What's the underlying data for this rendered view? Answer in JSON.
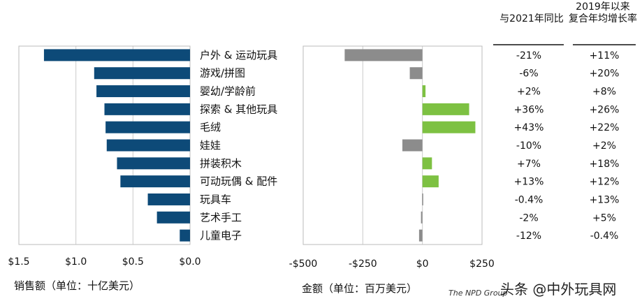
{
  "chart_data": [
    {
      "type": "bar",
      "orientation": "horizontal",
      "xlabel": "销售额（单位：十亿美元）",
      "categories": [
        "户外 & 运动玩具",
        "游戏/拼图",
        "婴幼/学龄前",
        "探索 & 其他玩具",
        "毛绒",
        "娃娃",
        "拼装积木",
        "可动玩偶 & 配件",
        "玩具车",
        "艺术手工",
        "儿童电子"
      ],
      "values": [
        1.28,
        0.84,
        0.82,
        0.75,
        0.74,
        0.73,
        0.64,
        0.61,
        0.37,
        0.29,
        0.09
      ],
      "xlim": [
        1.5,
        0.0
      ],
      "xticks": [
        "$1.5",
        "$1.0",
        "$0.5",
        "$0.0"
      ],
      "tick_values": [
        1.5,
        1.0,
        0.5,
        0.0
      ],
      "grid": true,
      "color": "#0d4a78"
    },
    {
      "type": "bar",
      "orientation": "horizontal",
      "xlabel": "金额（单位：百万美元）",
      "values": [
        -326,
        -53,
        13,
        196,
        222,
        -84,
        40,
        68,
        -1,
        -6,
        -14
      ],
      "xlim": [
        -500,
        250
      ],
      "xticks": [
        "-$500",
        "-$250",
        "$0",
        "$250"
      ],
      "tick_values": [
        -500,
        -250,
        0,
        250
      ],
      "grid": true,
      "positive_color": "#7dc142",
      "negative_color": "#8c8c8c"
    }
  ],
  "table": {
    "col1_header": "与2021年同比",
    "col2_header_line1": "2019年以来",
    "col2_header_line2": "复合年均增长率",
    "col1": [
      "-21%",
      "-6%",
      "+2%",
      "+36%",
      "+43%",
      "-10%",
      "+7%",
      "+13%",
      "-0.4%",
      "-2%",
      "-12%"
    ],
    "col2": [
      "+11%",
      "+20%",
      "+8%",
      "+26%",
      "+22%",
      "+2%",
      "+18%",
      "+12%",
      "+13%",
      "+5%",
      "-0.4%"
    ]
  },
  "source": "The NPD Group",
  "watermark": "头条 @中外玩具网"
}
